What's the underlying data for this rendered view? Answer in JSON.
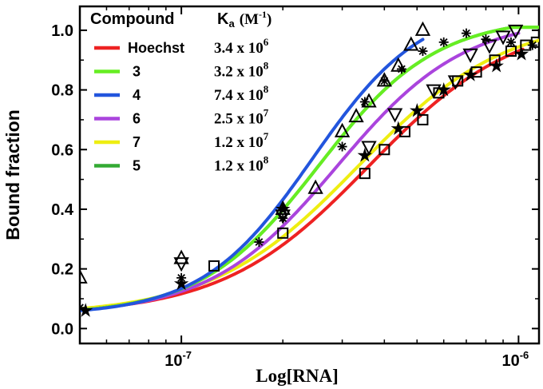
{
  "chart_data": {
    "type": "line",
    "xlabel": "Log[RNA]",
    "ylabel": "Bound fraction",
    "xscale": "log",
    "xlim": [
      5e-08,
      1.15e-06
    ],
    "ylim": [
      -0.05,
      1.08
    ],
    "yticks": [
      0.0,
      0.2,
      0.4,
      0.6,
      0.8,
      1.0
    ],
    "ytick_labels": [
      "0.0",
      "0.2",
      "0.4",
      "0.6",
      "0.8",
      "1.0"
    ],
    "xtick_labels": [
      {
        "value": 1e-07,
        "base": "10",
        "exp": "-7"
      },
      {
        "value": 1e-06,
        "base": "10",
        "exp": "-6"
      }
    ],
    "legend": {
      "position": "top-left",
      "header_compound": "Compound",
      "header_ka_main": "K",
      "header_ka_sub": "a",
      "header_ka_unit": "(M",
      "header_ka_exp": "-1",
      "header_ka_close": ")"
    },
    "series": [
      {
        "name": "Hoechst",
        "ka_mant": "3.4 x 10",
        "ka_exp": "6",
        "color": "#ee2222",
        "marker": "square",
        "ka": 3400000.0,
        "points": [
          [
            1.25e-07,
            0.21
          ],
          [
            2e-07,
            0.32
          ],
          [
            3.5e-07,
            0.52
          ],
          [
            4e-07,
            0.6
          ],
          [
            4.6e-07,
            0.66
          ],
          [
            5.2e-07,
            0.7
          ],
          [
            5.8e-07,
            0.79
          ],
          [
            6.6e-07,
            0.83
          ],
          [
            7.5e-07,
            0.86
          ],
          [
            8.5e-07,
            0.9
          ],
          [
            9.5e-07,
            0.93
          ],
          [
            1.05e-06,
            0.95
          ],
          [
            1.13e-06,
            0.96
          ]
        ]
      },
      {
        "name": "3",
        "ka_mant": "3.2 x 10",
        "ka_exp": "8",
        "color": "#66ee22",
        "marker": "none",
        "ka": 320000000.0,
        "points": []
      },
      {
        "name": "4",
        "ka_mant": "7.4 x 10",
        "ka_exp": "8",
        "color": "#2255dd",
        "marker": "triangle-up",
        "ka": 740000000.0,
        "points": [
          [
            5e-08,
            0.17
          ],
          [
            1e-07,
            0.235
          ],
          [
            2e-07,
            0.4
          ],
          [
            2.5e-07,
            0.47
          ],
          [
            3e-07,
            0.66
          ],
          [
            3.3e-07,
            0.71
          ],
          [
            3.6e-07,
            0.76
          ],
          [
            4e-07,
            0.83
          ],
          [
            4.4e-07,
            0.88
          ],
          [
            4.8e-07,
            0.95
          ],
          [
            5.2e-07,
            1.0
          ]
        ]
      },
      {
        "name": "6",
        "ka_mant": "2.5 x 10",
        "ka_exp": "7",
        "color": "#aa44dd",
        "marker": "triangle-down",
        "ka": 25000000.0,
        "points": [
          [
            1e-07,
            0.22
          ],
          [
            2e-07,
            0.38
          ],
          [
            3.6e-07,
            0.61
          ],
          [
            4.3e-07,
            0.72
          ],
          [
            5.6e-07,
            0.8
          ],
          [
            6.5e-07,
            0.83
          ],
          [
            7.2e-07,
            0.92
          ],
          [
            8.2e-07,
            0.95
          ],
          [
            9e-07,
            0.98
          ],
          [
            9.8e-07,
            1.0
          ]
        ]
      },
      {
        "name": "7",
        "ka_mant": "1.2 x 10",
        "ka_exp": "7",
        "color": "#eeee11",
        "marker": "star",
        "ka": 12000000.0,
        "points": [
          [
            5.2e-08,
            0.06
          ],
          [
            1e-07,
            0.15
          ],
          [
            2e-07,
            0.4
          ],
          [
            3.5e-07,
            0.58
          ],
          [
            4.4e-07,
            0.67
          ],
          [
            5e-07,
            0.73
          ],
          [
            6e-07,
            0.8
          ],
          [
            7.2e-07,
            0.85
          ],
          [
            8.6e-07,
            0.88
          ],
          [
            1.02e-06,
            0.92
          ]
        ]
      },
      {
        "name": "5",
        "ka_mant": "1.2 x 10",
        "ka_exp": "8",
        "color": "#33aa33",
        "marker": "asterisk",
        "ka": 120000000.0,
        "points": [
          [
            5e-08,
            0.07
          ],
          [
            1e-07,
            0.17
          ],
          [
            1.7e-07,
            0.29
          ],
          [
            2e-07,
            0.37
          ],
          [
            3e-07,
            0.61
          ],
          [
            3.5e-07,
            0.76
          ],
          [
            4e-07,
            0.83
          ],
          [
            4.5e-07,
            0.87
          ],
          [
            5.2e-07,
            0.93
          ],
          [
            6e-07,
            0.96
          ],
          [
            7e-07,
            0.99
          ],
          [
            8e-07,
            0.97
          ],
          [
            9.5e-07,
            0.96
          ],
          [
            1.1e-06,
            0.95
          ]
        ]
      }
    ]
  }
}
